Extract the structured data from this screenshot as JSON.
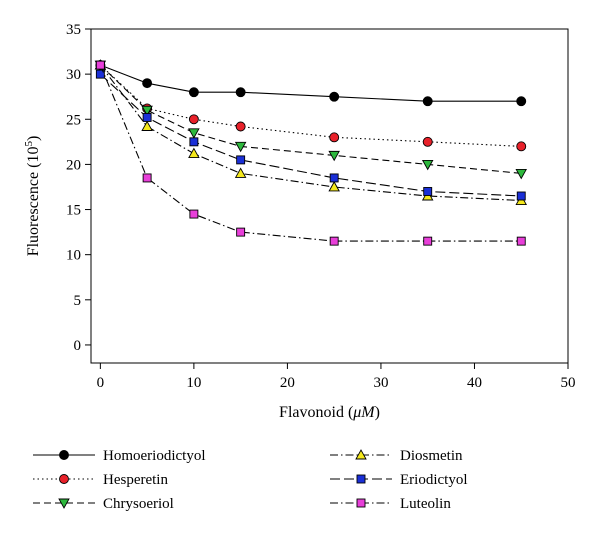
{
  "chart_data": {
    "type": "line",
    "xlabel_main": "Flavonoid (",
    "xlabel_unit": "μM",
    "xlabel_close": ")",
    "ylabel_main": "Fluorescence (10",
    "ylabel_exp": "5",
    "ylabel_close": ")",
    "xlim": [
      -1,
      50
    ],
    "ylim": [
      -2,
      35
    ],
    "xticks": [
      0,
      10,
      20,
      30,
      40,
      50
    ],
    "yticks": [
      0,
      5,
      10,
      15,
      20,
      25,
      30,
      35
    ],
    "grid": false,
    "legend_position": "bottom, two columns",
    "x": [
      0,
      5,
      10,
      15,
      25,
      35,
      45
    ],
    "series": [
      {
        "name": "Homoeriodictyol",
        "values": [
          31,
          29,
          28,
          28,
          27.5,
          27,
          27
        ],
        "marker": "circle",
        "fill": "#000000",
        "dash": "solid"
      },
      {
        "name": "Hesperetin",
        "values": [
          31,
          26.2,
          25,
          24.2,
          23,
          22.5,
          22
        ],
        "marker": "circle",
        "fill": "#e8212a",
        "dash": "dotted"
      },
      {
        "name": "Chrysoeriol",
        "values": [
          31,
          26,
          23.5,
          22,
          21,
          20,
          19
        ],
        "marker": "triangle-down",
        "fill": "#2db83d",
        "dash": "dashed"
      },
      {
        "name": "Diosmetin",
        "values": [
          31,
          24.2,
          21.2,
          19,
          17.5,
          16.5,
          16
        ],
        "marker": "triangle-up",
        "fill": "#f5e81c",
        "dash": "dashdot"
      },
      {
        "name": "Eriodictyol",
        "values": [
          30,
          25.2,
          22.5,
          20.5,
          18.5,
          17,
          16.5
        ],
        "marker": "square",
        "fill": "#1a2fd6",
        "dash": "longdash"
      },
      {
        "name": "Luteolin",
        "values": [
          31,
          18.5,
          14.5,
          12.5,
          11.5,
          11.5,
          11.5
        ],
        "marker": "square",
        "fill": "#e83fd9",
        "dash": "dashdot"
      }
    ]
  }
}
